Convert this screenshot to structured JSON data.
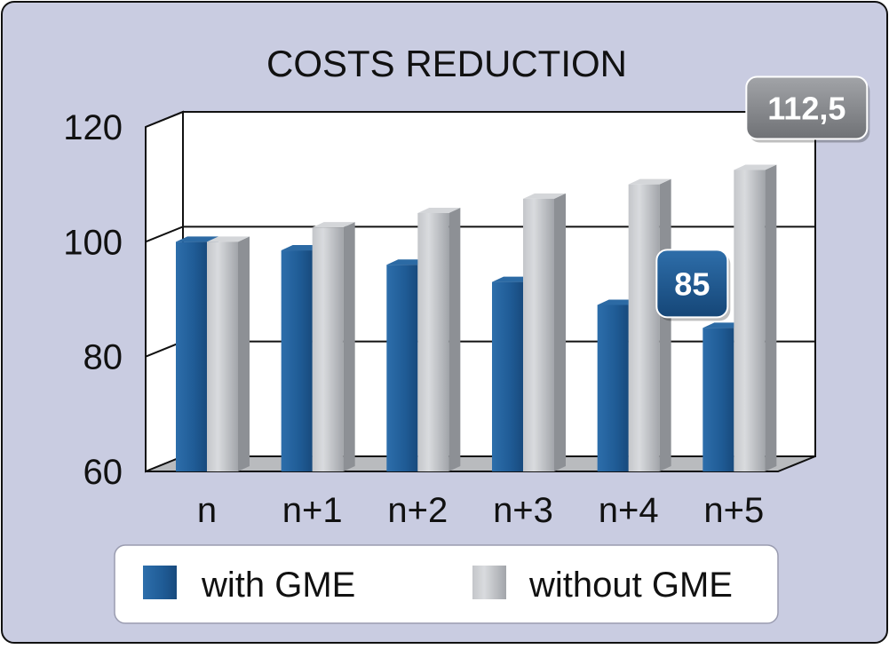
{
  "chart_data": {
    "type": "bar",
    "title": "COSTS REDUCTION",
    "categories": [
      "n",
      "n+1",
      "n+2",
      "n+3",
      "n+4",
      "n+5"
    ],
    "series": [
      {
        "name": "with GME",
        "values": [
          100,
          98.5,
          96,
          93,
          89,
          85
        ],
        "color": "#1f5b95"
      },
      {
        "name": "without GME",
        "values": [
          100,
          102.5,
          105,
          107.5,
          110,
          112.5
        ],
        "color": "#a9acb1"
      }
    ],
    "ylim": [
      60,
      120
    ],
    "yticks": [
      "60",
      "80",
      "100",
      "120"
    ],
    "grid": true,
    "legend": "bottom",
    "annotations": [
      {
        "series": 0,
        "index": 5,
        "label": "85",
        "color": "#1f5b95"
      },
      {
        "series": 1,
        "index": 5,
        "label": "112,5",
        "color": "#8a8c90"
      }
    ],
    "colors": {
      "frame": "#c9cce1",
      "panel": "#ffffff",
      "floor": "#b9bbbe"
    }
  }
}
